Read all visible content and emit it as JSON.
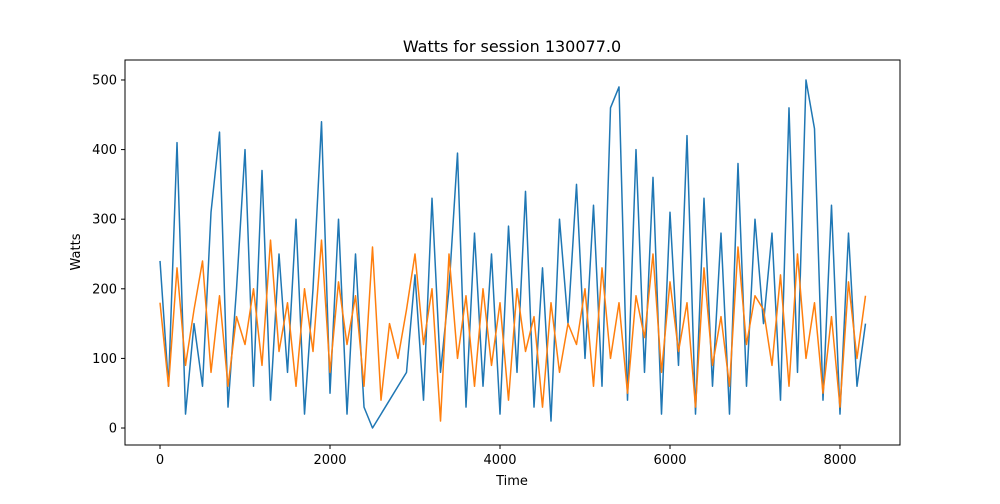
{
  "chart_data": {
    "type": "line",
    "title": "Watts for session 130077.0",
    "xlabel": "Time",
    "ylabel": "Watts",
    "x": [
      0,
      100,
      200,
      300,
      400,
      500,
      600,
      700,
      800,
      900,
      1000,
      1100,
      1200,
      1300,
      1400,
      1500,
      1600,
      1700,
      1800,
      1900,
      2000,
      2100,
      2200,
      2300,
      2400,
      2500,
      2600,
      2700,
      2800,
      2900,
      3000,
      3100,
      3200,
      3300,
      3400,
      3500,
      3600,
      3700,
      3800,
      3900,
      4000,
      4100,
      4200,
      4300,
      4400,
      4500,
      4600,
      4700,
      4800,
      4900,
      5000,
      5100,
      5200,
      5300,
      5400,
      5500,
      5600,
      5700,
      5800,
      5900,
      6000,
      6100,
      6200,
      6300,
      6400,
      6500,
      6600,
      6700,
      6800,
      6900,
      7000,
      7100,
      7200,
      7300,
      7400,
      7500,
      7600,
      7700,
      7800,
      7900,
      8000,
      8100,
      8200,
      8300
    ],
    "series": [
      {
        "color": "#1f77b4",
        "values": [
          240,
          60,
          410,
          20,
          150,
          60,
          310,
          425,
          30,
          200,
          400,
          60,
          370,
          40,
          250,
          80,
          300,
          20,
          200,
          440,
          50,
          300,
          20,
          250,
          30,
          0,
          20,
          40,
          60,
          80,
          220,
          40,
          330,
          80,
          200,
          395,
          30,
          280,
          60,
          250,
          20,
          290,
          80,
          340,
          30,
          230,
          10,
          300,
          150,
          350,
          100,
          320,
          60,
          460,
          490,
          40,
          400,
          80,
          360,
          20,
          310,
          90,
          420,
          20,
          330,
          60,
          280,
          20,
          380,
          60,
          300,
          150,
          280,
          40,
          460,
          80,
          500,
          430,
          40,
          320,
          20,
          280,
          60,
          150
        ]
      },
      {
        "color": "#ff7f0e",
        "values": [
          180,
          60,
          230,
          90,
          170,
          240,
          80,
          190,
          60,
          160,
          120,
          200,
          90,
          270,
          110,
          180,
          60,
          200,
          110,
          270,
          80,
          210,
          120,
          190,
          60,
          260,
          40,
          150,
          100,
          170,
          250,
          120,
          200,
          10,
          250,
          100,
          190,
          60,
          200,
          90,
          180,
          40,
          200,
          110,
          160,
          30,
          180,
          80,
          150,
          120,
          200,
          60,
          230,
          100,
          180,
          50,
          190,
          130,
          250,
          80,
          210,
          110,
          180,
          30,
          230,
          90,
          160,
          60,
          260,
          120,
          190,
          170,
          90,
          220,
          60,
          250,
          100,
          180,
          50,
          160,
          30,
          210,
          100,
          190
        ]
      }
    ],
    "xlim": [
      -412,
      8706
    ],
    "ylim": [
      -24.4,
      528.7
    ],
    "xticks": [
      0,
      2000,
      4000,
      6000,
      8000
    ],
    "yticks": [
      0,
      100,
      200,
      300,
      400,
      500
    ]
  }
}
